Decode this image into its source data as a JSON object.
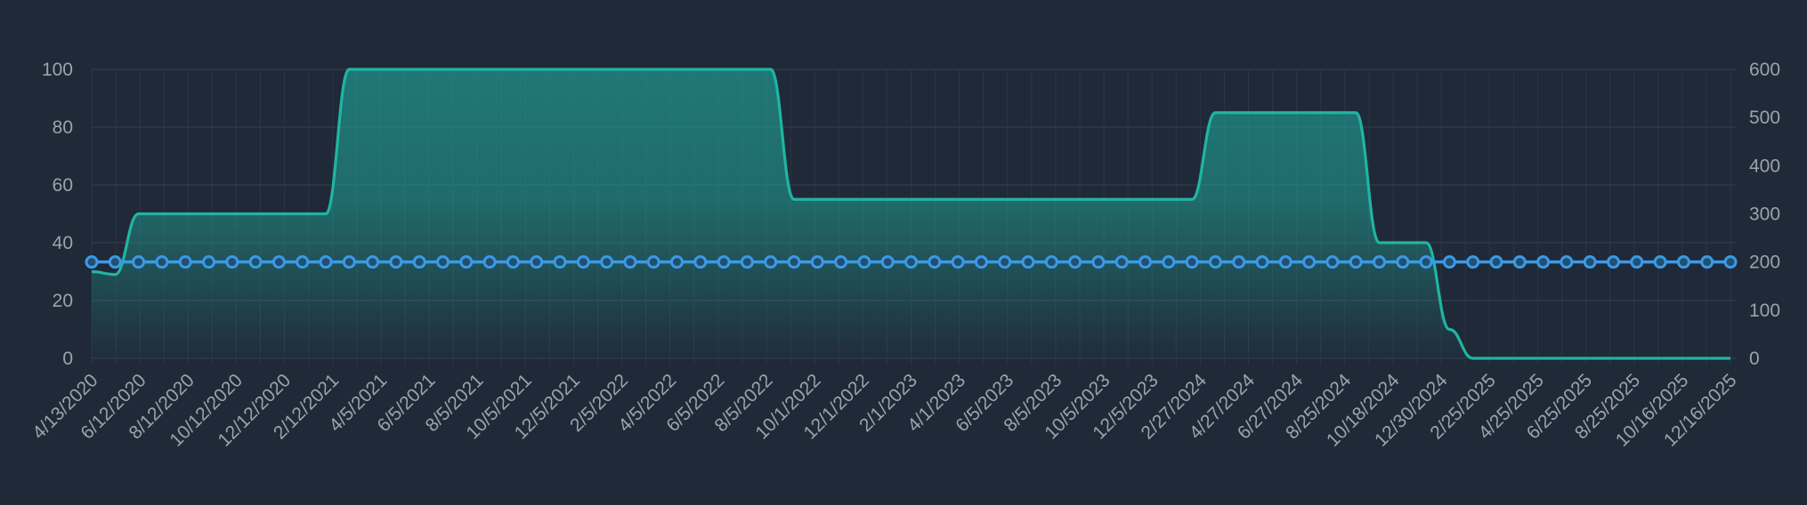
{
  "chart_data": {
    "type": "line",
    "title": "",
    "xlabel": "",
    "ylabel_left": "",
    "ylabel_right": "",
    "grid": true,
    "legend": "none",
    "x_tick_labels": [
      "4/13/2020",
      "6/12/2020",
      "8/12/2020",
      "10/12/2020",
      "12/12/2020",
      "2/12/2021",
      "4/5/2021",
      "6/5/2021",
      "8/5/2021",
      "10/5/2021",
      "12/5/2021",
      "2/5/2022",
      "4/5/2022",
      "6/5/2022",
      "8/5/2022",
      "10/1/2022",
      "12/1/2022",
      "2/1/2023",
      "4/1/2023",
      "6/5/2023",
      "8/5/2023",
      "10/5/2023",
      "12/5/2023",
      "2/27/2024",
      "4/27/2024",
      "6/27/2024",
      "8/25/2024",
      "10/18/2024",
      "12/30/2024",
      "2/25/2025",
      "4/25/2025",
      "6/25/2025",
      "8/25/2025",
      "10/16/2025",
      "12/16/2025"
    ],
    "y_left": {
      "min": 0,
      "max": 100,
      "ticks": [
        0,
        20,
        40,
        60,
        80,
        100
      ]
    },
    "y_right": {
      "min": 0,
      "max": 600,
      "ticks": [
        0,
        100,
        200,
        300,
        400,
        500,
        600
      ]
    },
    "series": [
      {
        "axis": "left",
        "style": "area",
        "color": "#1fb5a3",
        "values": [
          30,
          29,
          50,
          50,
          50,
          50,
          50,
          50,
          50,
          50,
          50,
          100,
          100,
          100,
          100,
          100,
          100,
          100,
          100,
          100,
          100,
          100,
          100,
          100,
          100,
          100,
          100,
          100,
          100,
          100,
          55,
          55,
          55,
          55,
          55,
          55,
          55,
          55,
          55,
          55,
          55,
          55,
          55,
          55,
          55,
          55,
          55,
          55,
          85,
          85,
          85,
          85,
          85,
          85,
          85,
          40,
          40,
          40,
          10,
          0,
          0,
          0,
          0,
          0,
          0,
          0,
          0,
          0,
          0,
          0,
          0
        ]
      },
      {
        "axis": "right",
        "style": "line-markers",
        "color": "#3b9ae6",
        "values": [
          200,
          200,
          200,
          200,
          200,
          200,
          200,
          200,
          200,
          200,
          200,
          200,
          200,
          200,
          200,
          200,
          200,
          200,
          200,
          200,
          200,
          200,
          200,
          200,
          200,
          200,
          200,
          200,
          200,
          200,
          200,
          200,
          200,
          200,
          200,
          200,
          200,
          200,
          200,
          200,
          200,
          200,
          200,
          200,
          200,
          200,
          200,
          200,
          200,
          200,
          200,
          200,
          200,
          200,
          200,
          200,
          200,
          200,
          200,
          200,
          200,
          200,
          200,
          200,
          200,
          200,
          200,
          200,
          200,
          200,
          200
        ]
      }
    ]
  }
}
